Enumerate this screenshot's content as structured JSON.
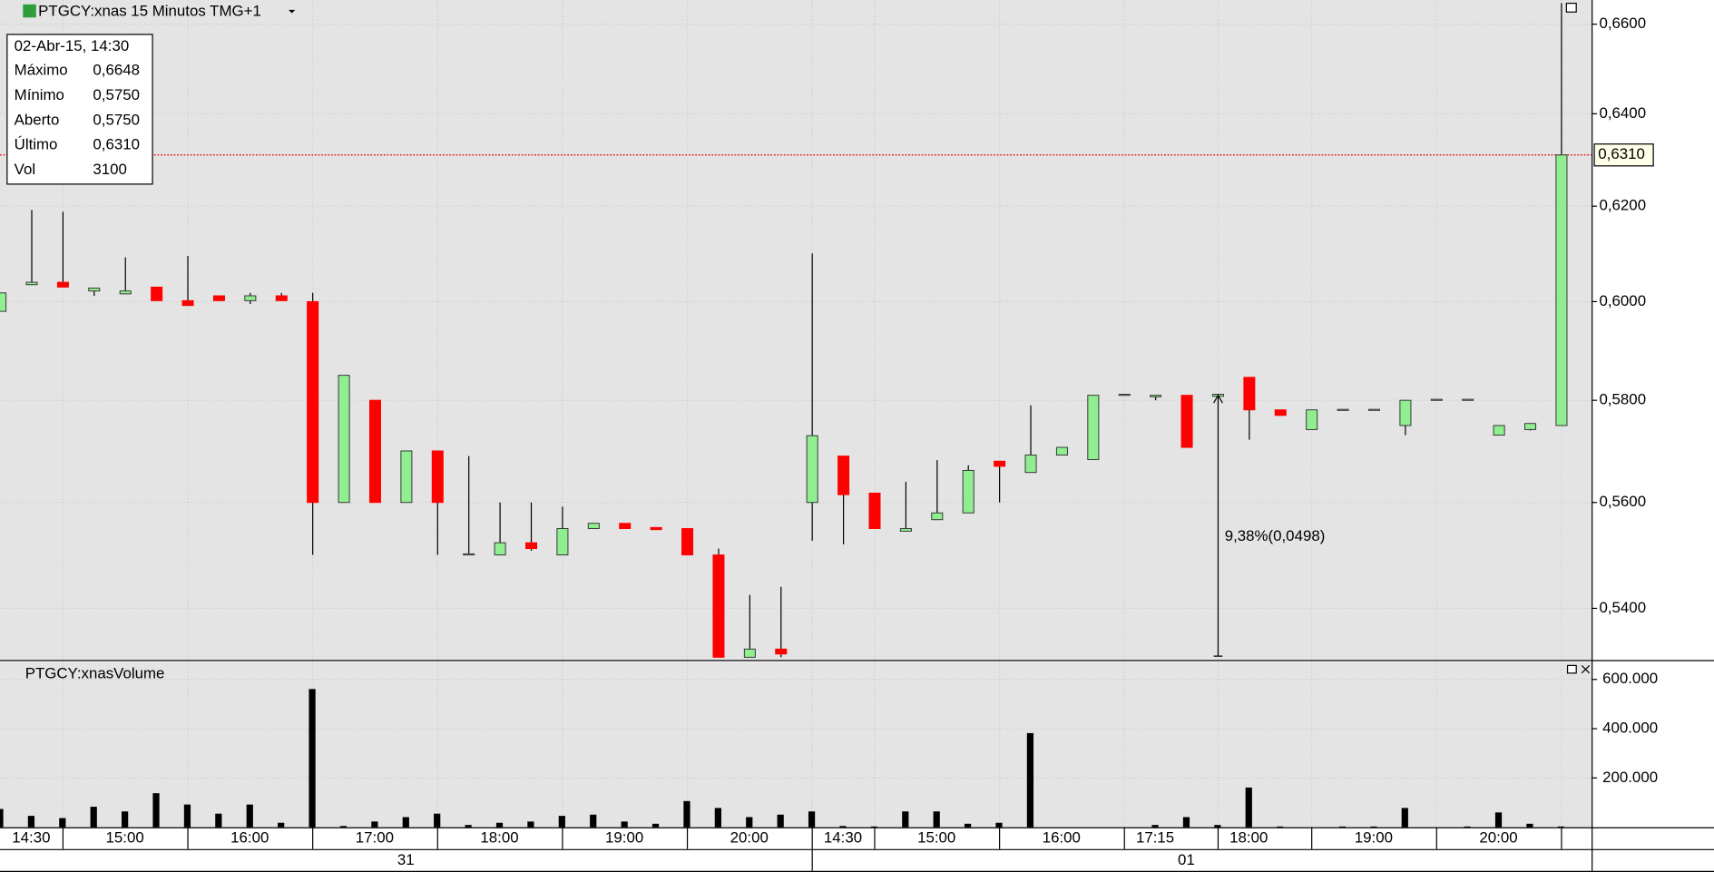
{
  "chart_data": [
    {
      "type": "candlestick",
      "title": "PTGCY:xnas 15 Minutos TMG+1",
      "open": [
        0.598,
        0.6035,
        0.604,
        0.6022,
        0.6016,
        0.603,
        0.6002,
        0.6012,
        0.6002,
        0.6012,
        0.6,
        0.56,
        0.58,
        0.56,
        0.57,
        0.55,
        0.55,
        0.5523,
        0.55,
        0.555,
        0.556,
        0.5552,
        0.555,
        0.55,
        0.531,
        0.5325,
        0.56,
        0.569,
        0.5618,
        0.5545,
        0.5567,
        0.558,
        0.568,
        0.5658,
        0.5692,
        0.5683,
        0.581,
        0.5807,
        0.581,
        0.5808,
        0.5846,
        0.5781,
        0.5742,
        0.578,
        0.578,
        0.575,
        0.58,
        0.58,
        0.5731,
        0.5742,
        0.575
      ],
      "high": [
        0.6018,
        0.6192,
        0.6188,
        0.6028,
        0.6092,
        0.603,
        0.6095,
        0.6012,
        0.6018,
        0.6018,
        0.6018,
        0.585,
        0.58,
        0.57,
        0.57,
        0.569,
        0.56,
        0.56,
        0.5592,
        0.556,
        0.556,
        0.5552,
        0.555,
        0.5512,
        0.5425,
        0.544,
        0.61,
        0.569,
        0.5618,
        0.564,
        0.5682,
        0.5672,
        0.568,
        0.579,
        0.5707,
        0.581,
        0.5812,
        0.581,
        0.581,
        0.5812,
        0.5846,
        0.5781,
        0.5781,
        0.5782,
        0.5782,
        0.58,
        0.5802,
        0.5802,
        0.575,
        0.5754,
        0.6648
      ],
      "low": [
        0.598,
        0.6035,
        0.603,
        0.6012,
        0.6016,
        0.6002,
        0.5992,
        0.6002,
        0.5995,
        0.6002,
        0.55,
        0.56,
        0.56,
        0.56,
        0.55,
        0.55,
        0.55,
        0.5508,
        0.55,
        0.555,
        0.555,
        0.5548,
        0.55,
        0.531,
        0.531,
        0.531,
        0.5527,
        0.552,
        0.555,
        0.5545,
        0.5567,
        0.558,
        0.56,
        0.5658,
        0.5692,
        0.5683,
        0.581,
        0.58,
        0.5707,
        0.5808,
        0.5722,
        0.577,
        0.5742,
        0.578,
        0.578,
        0.5731,
        0.58,
        0.58,
        0.5731,
        0.574,
        0.575
      ],
      "close": [
        0.6018,
        0.604,
        0.603,
        0.6028,
        0.6022,
        0.6002,
        0.5992,
        0.6002,
        0.6012,
        0.6002,
        0.56,
        0.585,
        0.56,
        0.57,
        0.56,
        0.5502,
        0.5523,
        0.5512,
        0.555,
        0.556,
        0.555,
        0.5548,
        0.55,
        0.531,
        0.5325,
        0.5316,
        0.573,
        0.5615,
        0.555,
        0.555,
        0.558,
        0.5662,
        0.567,
        0.5692,
        0.5707,
        0.581,
        0.5812,
        0.581,
        0.5707,
        0.5812,
        0.5781,
        0.577,
        0.5781,
        0.5782,
        0.5782,
        0.58,
        0.5802,
        0.5802,
        0.575,
        0.5754,
        0.631
      ],
      "ylim": [
        0.5305,
        0.665
      ],
      "log_scale": true,
      "grid": true,
      "yticks": [
        {
          "value": 0.54,
          "label": "0,5400"
        },
        {
          "value": 0.56,
          "label": "0,5600"
        },
        {
          "value": 0.58,
          "label": "0,5800"
        },
        {
          "value": 0.6,
          "label": "0,6000"
        },
        {
          "value": 0.62,
          "label": "0,6200"
        },
        {
          "value": 0.64,
          "label": "0,6400"
        },
        {
          "value": 0.66,
          "label": "0,6600"
        }
      ],
      "up_color": "#90ee90",
      "down_color": "#ff0000",
      "last_price": {
        "value": 0.631,
        "label": "0,6310"
      },
      "measure": {
        "label": "9,38%(0,0498)",
        "from": 0.5312,
        "to": 0.581
      },
      "info_box": {
        "date": "02-Abr-15, 14:30",
        "rows": [
          [
            "Máximo",
            "0,6648"
          ],
          [
            "Mínimo",
            "0,5750"
          ],
          [
            "Aberto",
            "0,5750"
          ],
          [
            "Último",
            "0,6310"
          ],
          [
            "Vol",
            "3100"
          ]
        ]
      }
    },
    {
      "type": "bar",
      "title": "PTGCY:xnasVolume",
      "color": "#000000",
      "categories": [
        null,
        "14:30",
        null,
        null,
        "15:00",
        null,
        null,
        null,
        "16:00",
        null,
        null,
        null,
        "17:00",
        null,
        null,
        null,
        "18:00",
        null,
        null,
        null,
        "19:00",
        null,
        null,
        null,
        "20:00",
        null,
        null,
        "14:30",
        null,
        null,
        "15:00",
        null,
        null,
        null,
        "16:00",
        null,
        null,
        "17:15",
        null,
        null,
        "18:00",
        null,
        null,
        null,
        "19:00",
        null,
        null,
        null,
        "20:00",
        null,
        null
      ],
      "values": [
        74000,
        46000,
        37000,
        83000,
        64000,
        138000,
        92000,
        55000,
        92000,
        18000,
        561000,
        5000,
        23000,
        41000,
        55000,
        9000,
        18000,
        23000,
        46000,
        51000,
        23000,
        14000,
        106000,
        78000,
        41000,
        51000,
        64000,
        5000,
        3000,
        64000,
        64000,
        14000,
        18000,
        382000,
        0,
        0,
        0,
        9000,
        41000,
        9000,
        161000,
        3000,
        0,
        3000,
        3000,
        78000,
        0,
        3000,
        60000,
        14000,
        3100
      ],
      "ylim": [
        0,
        670000
      ],
      "yticks": [
        {
          "value": 200000,
          "label": "200.000"
        },
        {
          "value": 400000,
          "label": "400.000"
        },
        {
          "value": 600000,
          "label": "600.000"
        }
      ],
      "day_labels": [
        "31",
        "01"
      ]
    }
  ]
}
